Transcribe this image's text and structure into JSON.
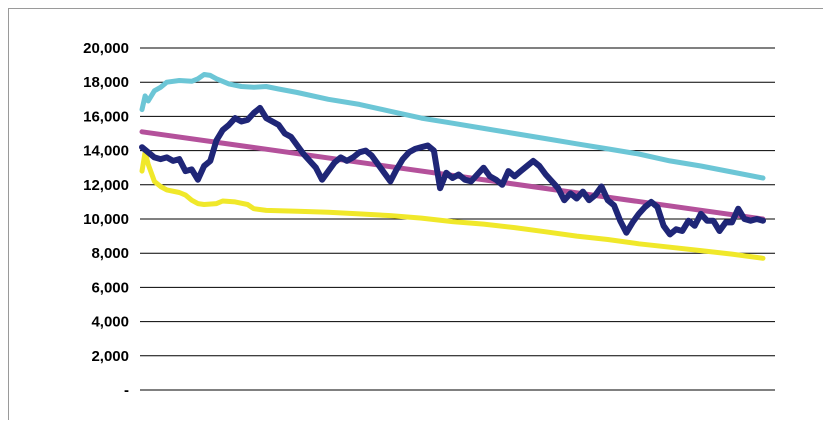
{
  "chart_data": {
    "type": "line",
    "title": "",
    "xlabel": "",
    "ylabel": "",
    "ylim": [
      0,
      20000
    ],
    "y_ticks": [
      0,
      2000,
      4000,
      6000,
      8000,
      10000,
      12000,
      14000,
      16000,
      18000,
      20000
    ],
    "y_tick_labels": [
      "-",
      "2,000",
      "4,000",
      "6,000",
      "8,000",
      "10,000",
      "12,000",
      "14,000",
      "16,000",
      "18,000",
      "20,000"
    ],
    "x_range": [
      0,
      100
    ],
    "grid": true,
    "legend": "none",
    "series": [
      {
        "color": "#6CC6D6",
        "role": "upper-band",
        "points": [
          [
            0,
            16400
          ],
          [
            0.5,
            17200
          ],
          [
            1,
            16900
          ],
          [
            2,
            17500
          ],
          [
            3,
            17700
          ],
          [
            4,
            18000
          ],
          [
            6,
            18100
          ],
          [
            8,
            18050
          ],
          [
            9,
            18200
          ],
          [
            10,
            18450
          ],
          [
            11,
            18400
          ],
          [
            12,
            18200
          ],
          [
            14,
            17900
          ],
          [
            16,
            17750
          ],
          [
            18,
            17700
          ],
          [
            20,
            17750
          ],
          [
            22,
            17600
          ],
          [
            25,
            17400
          ],
          [
            30,
            17000
          ],
          [
            35,
            16700
          ],
          [
            40,
            16300
          ],
          [
            45,
            15900
          ],
          [
            50,
            15600
          ],
          [
            55,
            15300
          ],
          [
            60,
            15000
          ],
          [
            65,
            14700
          ],
          [
            70,
            14400
          ],
          [
            75,
            14100
          ],
          [
            80,
            13800
          ],
          [
            85,
            13400
          ],
          [
            90,
            13100
          ],
          [
            95,
            12750
          ],
          [
            100,
            12400
          ]
        ]
      },
      {
        "color": "#F0E82A",
        "role": "lower-band",
        "points": [
          [
            0,
            12800
          ],
          [
            0.5,
            13900
          ],
          [
            1,
            13200
          ],
          [
            2,
            12200
          ],
          [
            3,
            11900
          ],
          [
            4,
            11700
          ],
          [
            6,
            11550
          ],
          [
            7,
            11400
          ],
          [
            8,
            11100
          ],
          [
            9,
            10900
          ],
          [
            10,
            10850
          ],
          [
            12,
            10900
          ],
          [
            13,
            11050
          ],
          [
            15,
            11000
          ],
          [
            17,
            10850
          ],
          [
            18,
            10600
          ],
          [
            20,
            10500
          ],
          [
            25,
            10450
          ],
          [
            30,
            10400
          ],
          [
            35,
            10300
          ],
          [
            40,
            10200
          ],
          [
            45,
            10050
          ],
          [
            50,
            9850
          ],
          [
            55,
            9700
          ],
          [
            60,
            9500
          ],
          [
            65,
            9250
          ],
          [
            70,
            9000
          ],
          [
            75,
            8800
          ],
          [
            80,
            8550
          ],
          [
            85,
            8350
          ],
          [
            90,
            8150
          ],
          [
            95,
            7950
          ],
          [
            100,
            7700
          ]
        ]
      },
      {
        "color": "#B4519B",
        "role": "trend",
        "points": [
          [
            0,
            15100
          ],
          [
            100,
            10000
          ]
        ]
      },
      {
        "color": "#1F2677",
        "role": "actual",
        "points": [
          [
            0,
            14200
          ],
          [
            1,
            13900
          ],
          [
            2,
            13600
          ],
          [
            3,
            13500
          ],
          [
            4,
            13600
          ],
          [
            5,
            13400
          ],
          [
            6,
            13500
          ],
          [
            7,
            12800
          ],
          [
            8,
            12900
          ],
          [
            9,
            12300
          ],
          [
            10,
            13100
          ],
          [
            11,
            13400
          ],
          [
            12,
            14600
          ],
          [
            13,
            15200
          ],
          [
            14,
            15500
          ],
          [
            15,
            15900
          ],
          [
            16,
            15700
          ],
          [
            17,
            15800
          ],
          [
            18,
            16200
          ],
          [
            19,
            16500
          ],
          [
            20,
            15900
          ],
          [
            21,
            15700
          ],
          [
            22,
            15500
          ],
          [
            23,
            15000
          ],
          [
            24,
            14800
          ],
          [
            25,
            14300
          ],
          [
            26,
            13800
          ],
          [
            27,
            13400
          ],
          [
            28,
            13000
          ],
          [
            29,
            12300
          ],
          [
            30,
            12800
          ],
          [
            31,
            13300
          ],
          [
            32,
            13600
          ],
          [
            33,
            13400
          ],
          [
            34,
            13600
          ],
          [
            35,
            13900
          ],
          [
            36,
            14000
          ],
          [
            37,
            13700
          ],
          [
            38,
            13200
          ],
          [
            39,
            12700
          ],
          [
            40,
            12200
          ],
          [
            41,
            12900
          ],
          [
            42,
            13500
          ],
          [
            43,
            13900
          ],
          [
            44,
            14100
          ],
          [
            45,
            14200
          ],
          [
            46,
            14300
          ],
          [
            47,
            14000
          ],
          [
            48,
            11800
          ],
          [
            49,
            12700
          ],
          [
            50,
            12400
          ],
          [
            51,
            12600
          ],
          [
            52,
            12300
          ],
          [
            53,
            12200
          ],
          [
            54,
            12600
          ],
          [
            55,
            13000
          ],
          [
            56,
            12500
          ],
          [
            57,
            12300
          ],
          [
            58,
            12000
          ],
          [
            59,
            12800
          ],
          [
            60,
            12500
          ],
          [
            61,
            12800
          ],
          [
            62,
            13100
          ],
          [
            63,
            13400
          ],
          [
            64,
            13100
          ],
          [
            65,
            12600
          ],
          [
            66,
            12200
          ],
          [
            67,
            11800
          ],
          [
            68,
            11100
          ],
          [
            69,
            11500
          ],
          [
            70,
            11200
          ],
          [
            71,
            11600
          ],
          [
            72,
            11100
          ],
          [
            73,
            11400
          ],
          [
            74,
            11900
          ],
          [
            75,
            11100
          ],
          [
            76,
            10800
          ],
          [
            77,
            9900
          ],
          [
            78,
            9200
          ],
          [
            79,
            9800
          ],
          [
            80,
            10300
          ],
          [
            81,
            10700
          ],
          [
            82,
            11000
          ],
          [
            83,
            10700
          ],
          [
            84,
            9600
          ],
          [
            85,
            9100
          ],
          [
            86,
            9400
          ],
          [
            87,
            9300
          ],
          [
            88,
            9900
          ],
          [
            89,
            9600
          ],
          [
            90,
            10300
          ],
          [
            91,
            9900
          ],
          [
            92,
            9900
          ],
          [
            93,
            9300
          ],
          [
            94,
            9800
          ],
          [
            95,
            9800
          ],
          [
            96,
            10600
          ],
          [
            97,
            10000
          ],
          [
            98,
            9900
          ],
          [
            99,
            10000
          ],
          [
            100,
            9900
          ]
        ]
      }
    ]
  }
}
